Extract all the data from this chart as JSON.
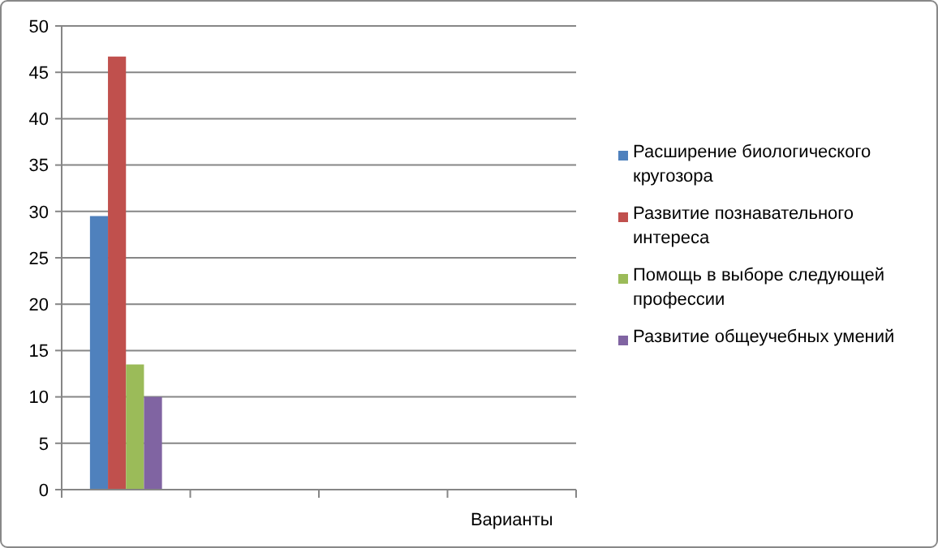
{
  "chart_data": {
    "type": "bar",
    "categories": [
      null,
      null,
      null,
      "Варианты"
    ],
    "series": [
      {
        "name": "Расширение биологического кругозора",
        "color": "#4f81bd",
        "values": [
          29.5,
          null,
          null,
          null
        ]
      },
      {
        "name": "Развитие познавательного интереса",
        "color": "#c0504d",
        "values": [
          46.7,
          null,
          null,
          null
        ]
      },
      {
        "name": " Помощь в выборе следующей профессии",
        "color": "#9bbb59",
        "values": [
          13.5,
          null,
          null,
          null
        ]
      },
      {
        "name": " Развитие общеучебных умений",
        "color": "#8064a2",
        "values": [
          10,
          null,
          null,
          null
        ]
      }
    ],
    "ylim": [
      0,
      50
    ],
    "yticks": [
      0,
      5,
      10,
      15,
      20,
      25,
      30,
      35,
      40,
      45,
      50
    ],
    "grid": "y",
    "legend": "right"
  }
}
